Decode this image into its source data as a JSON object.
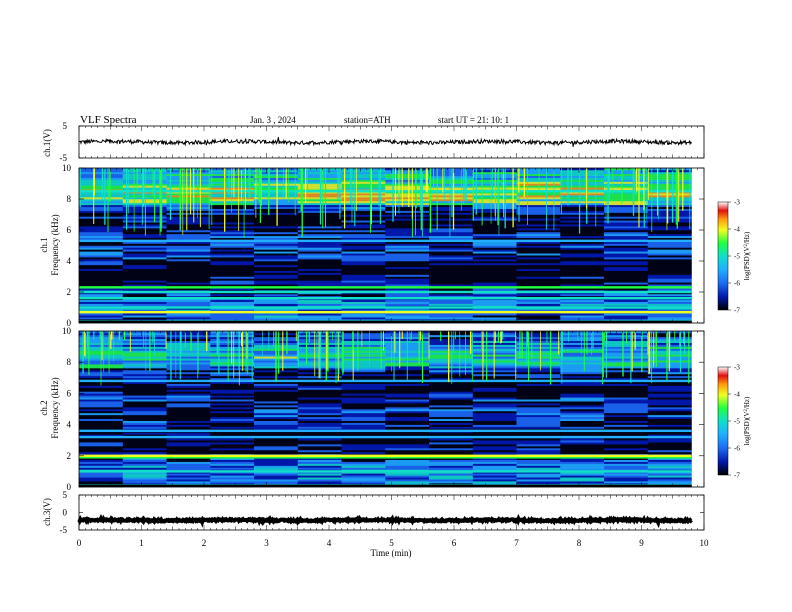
{
  "header": {
    "title": "VLF  Spectra",
    "date": "Jan.  3  ,  2024",
    "station": "station=ATH",
    "start": "start  UT  =    21: 10: 1"
  },
  "colors": {
    "colormap": [
      "#000000",
      "#0018a8",
      "#1d6cf2",
      "#20b0ff",
      "#10e0c8",
      "#20ff40",
      "#f0ff20",
      "#ff9a10",
      "#e01010",
      "#ffffff"
    ],
    "trace": "#000000",
    "frame": "#000000"
  },
  "chart_data": [
    {
      "type": "line",
      "name": "ch1-waveform",
      "ylabel": "ch.1(V)",
      "yticks": [
        "5",
        "-5"
      ],
      "ylim": [
        -5,
        5
      ],
      "xlim": [
        0,
        10
      ],
      "x_end": 9.8,
      "baseline": 0,
      "noise_amplitude": 0.6
    },
    {
      "type": "heatmap",
      "name": "ch1-spectrogram",
      "ylabel": "ch.1\nFrequency  (kHz)",
      "yticks": [
        "0",
        "2",
        "4",
        "6",
        "8",
        "10"
      ],
      "ylim": [
        0,
        10
      ],
      "xlim": [
        0,
        10
      ],
      "x_end": 9.8,
      "z_label": "log(PSD)(V²/Hz)",
      "z_ticks": [
        "-3",
        "-4",
        "-5",
        "-6",
        "-7"
      ],
      "zlim": [
        -7,
        -3
      ],
      "bands": [
        {
          "f": 0.1,
          "level": -5.0
        },
        {
          "f": 0.7,
          "level": -4.2
        },
        {
          "f": 1.0,
          "level": -4.8
        },
        {
          "f": 1.6,
          "level": -5.2
        },
        {
          "f": 2.0,
          "level": -5.0
        },
        {
          "f": 2.3,
          "level": -4.4
        },
        {
          "f": 5.3,
          "level": -5.3
        },
        {
          "f": 8.5,
          "level": -5.1
        }
      ]
    },
    {
      "type": "heatmap",
      "name": "ch2-spectrogram",
      "ylabel": "ch.2\nFrequency  (kHz)",
      "yticks": [
        "0",
        "2",
        "4",
        "6",
        "8",
        "10"
      ],
      "ylim": [
        0,
        10
      ],
      "xlim": [
        0,
        10
      ],
      "x_end": 9.8,
      "z_label": "log(PSD)(V²/Hz)",
      "z_ticks": [
        "-3",
        "-4",
        "-5",
        "-6",
        "-7"
      ],
      "zlim": [
        -7,
        -3
      ],
      "bands": [
        {
          "f": 0.1,
          "level": -5.0
        },
        {
          "f": 1.0,
          "level": -4.9
        },
        {
          "f": 1.9,
          "level": -4.5
        },
        {
          "f": 2.0,
          "level": -4.0
        },
        {
          "f": 3.2,
          "level": -5.3
        },
        {
          "f": 3.6,
          "level": -5.4
        },
        {
          "f": 6.8,
          "level": -5.6
        }
      ]
    },
    {
      "type": "line",
      "name": "ch3-waveform",
      "ylabel": "ch.3(V)",
      "yticks": [
        "5",
        "0",
        "-5"
      ],
      "ylim": [
        -5,
        5
      ],
      "xlim": [
        0,
        10
      ],
      "x_end": 9.8,
      "baseline": -2.2,
      "noise_amplitude": 0.25
    }
  ],
  "xaxis": {
    "label": "Time  (min)",
    "ticks": [
      "0",
      "1",
      "2",
      "3",
      "4",
      "5",
      "6",
      "7",
      "8",
      "9",
      "10"
    ]
  }
}
